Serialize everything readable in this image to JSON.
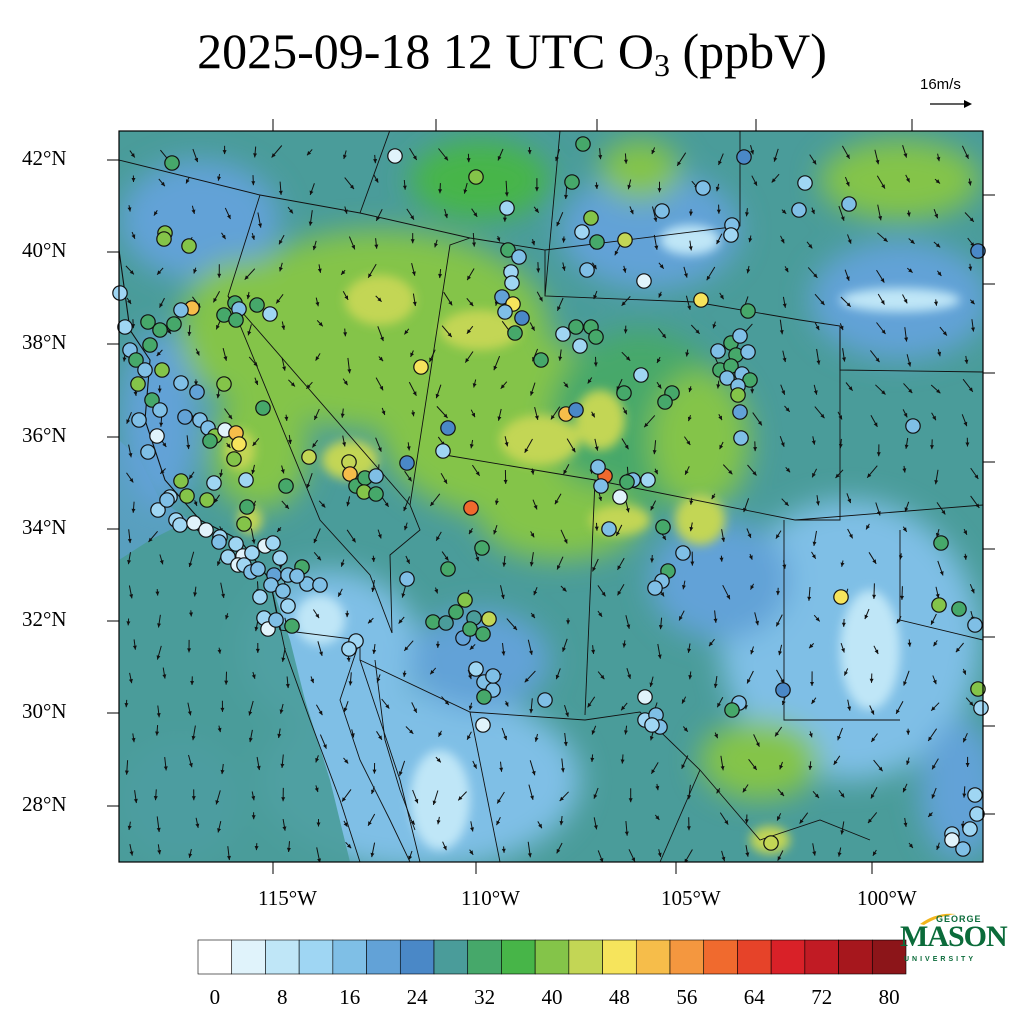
{
  "title": {
    "main": "2025-09-18 12 UTC O",
    "subscript": "3",
    "units": " (ppbV)"
  },
  "scale_vector": {
    "label": "16m/s",
    "speed_ms": 16
  },
  "map": {
    "extent": {
      "lon_min": -119.5,
      "lon_max": -97.5,
      "lat_min": 27,
      "lat_max": 42.5
    },
    "lat_labels": [
      "42°N",
      "40°N",
      "38°N",
      "36°N",
      "34°N",
      "32°N",
      "30°N",
      "28°N"
    ],
    "lon_labels": [
      "115°W",
      "110°W",
      "105°W",
      "100°W"
    ],
    "background": "modeled surface ozone concentration field",
    "overlays": [
      "wind vectors",
      "state and country boundaries",
      "coastlines",
      "observation site markers"
    ]
  },
  "colorbar": {
    "levels": [
      0,
      4,
      8,
      12,
      16,
      20,
      24,
      28,
      32,
      36,
      40,
      44,
      48,
      52,
      56,
      60,
      64,
      68,
      72,
      76,
      80,
      84
    ],
    "colors": [
      "#ffffff",
      "#e0f3fb",
      "#bfe6f7",
      "#9fd6f3",
      "#7fbfe6",
      "#62a2d7",
      "#4a88c7",
      "#4a9c9a",
      "#46a86a",
      "#47b548",
      "#84c449",
      "#c3d655",
      "#f6e45c",
      "#f6bd4a",
      "#f4973f",
      "#f06a2e",
      "#e64329",
      "#d92128",
      "#c11b24",
      "#a6171d",
      "#8c1519"
    ],
    "tick_labels": [
      "0",
      "8",
      "16",
      "24",
      "32",
      "40",
      "48",
      "56",
      "64",
      "72",
      "80"
    ],
    "tick_values": [
      0,
      8,
      16,
      24,
      32,
      40,
      48,
      56,
      64,
      72,
      80
    ]
  },
  "logo": {
    "line1": "GEORGE",
    "line2": "MASON",
    "line3": "UNIVERSITY"
  }
}
